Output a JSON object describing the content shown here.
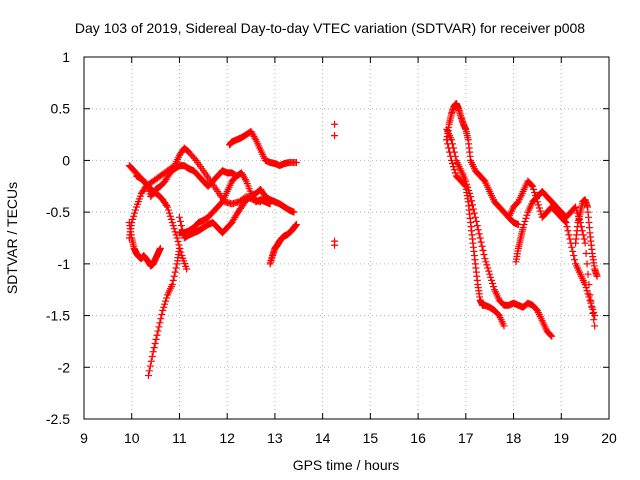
{
  "chart_data": {
    "type": "scatter",
    "title": "Day 103 of 2019, Sidereal Day-to-day VTEC variation (SDTVAR) for receiver p008",
    "xlabel": "GPS time / hours",
    "ylabel": "SDTVAR / TECUs",
    "xlim": [
      9,
      20
    ],
    "ylim": [
      -2.5,
      1
    ],
    "xticks": [
      "9",
      "10",
      "11",
      "12",
      "13",
      "14",
      "15",
      "16",
      "17",
      "18",
      "19",
      "20"
    ],
    "yticks": [
      "1",
      "0.5",
      "0",
      "-0.5",
      "-1",
      "-1.5",
      "-2",
      "-2.5"
    ],
    "grid": true,
    "marker": "+",
    "color": "#ff0000",
    "series": [
      {
        "name": "s1",
        "x": [
          9.95,
          10.0,
          10.05,
          10.1,
          10.15,
          10.2,
          10.25,
          10.3,
          10.35,
          10.4,
          10.45,
          10.5,
          10.55,
          10.6
        ],
        "y": [
          -0.6,
          -0.75,
          -0.85,
          -0.9,
          -0.93,
          -0.95,
          -0.92,
          -0.95,
          -0.98,
          -1.02,
          -1.0,
          -0.95,
          -0.9,
          -0.85
        ]
      },
      {
        "name": "s2",
        "x": [
          9.95,
          10.05,
          10.15,
          10.25,
          10.35,
          10.45,
          10.55,
          10.65,
          10.75,
          10.85,
          10.95,
          11.05,
          11.15
        ],
        "y": [
          -0.05,
          -0.1,
          -0.15,
          -0.2,
          -0.25,
          -0.3,
          -0.33,
          -0.38,
          -0.45,
          -0.6,
          -0.75,
          -0.92,
          -1.05
        ]
      },
      {
        "name": "s3",
        "x": [
          9.95,
          10.0,
          10.1,
          10.2,
          10.3,
          10.45,
          10.6,
          10.75,
          10.9,
          11.0,
          11.1,
          11.2,
          11.35,
          11.5,
          11.65,
          11.8,
          11.95,
          12.1,
          12.25,
          12.4,
          12.55,
          12.7
        ],
        "y": [
          -0.75,
          -0.6,
          -0.45,
          -0.32,
          -0.25,
          -0.2,
          -0.15,
          -0.1,
          -0.05,
          0.05,
          0.12,
          0.08,
          0.0,
          -0.1,
          -0.2,
          -0.3,
          -0.4,
          -0.42,
          -0.4,
          -0.35,
          -0.38,
          -0.4
        ]
      },
      {
        "name": "s4",
        "x": [
          10.1,
          10.2,
          10.3,
          10.4,
          10.5,
          10.6,
          10.7,
          10.8,
          10.9,
          11.0,
          11.1,
          11.2,
          11.3,
          11.4,
          11.5,
          11.6,
          11.7,
          11.8,
          11.9,
          12.0,
          12.1,
          12.2
        ],
        "y": [
          -0.15,
          -0.18,
          -0.22,
          -0.35,
          -0.28,
          -0.25,
          -0.2,
          -0.12,
          -0.08,
          -0.05,
          -0.05,
          -0.08,
          -0.1,
          -0.15,
          -0.2,
          -0.25,
          -0.2,
          -0.15,
          -0.1,
          -0.12,
          -0.12,
          -0.15
        ]
      },
      {
        "name": "s5",
        "x": [
          10.35,
          10.45,
          10.55,
          10.65,
          10.75,
          10.85,
          10.95,
          11.0
        ],
        "y": [
          -2.08,
          -1.85,
          -1.65,
          -1.45,
          -1.3,
          -1.2,
          -1.0,
          -0.85
        ]
      },
      {
        "name": "s6",
        "x": [
          11.0,
          11.1,
          11.2,
          11.3,
          11.4,
          11.5,
          11.6,
          11.7,
          11.8,
          11.9,
          12.0,
          12.1,
          12.2,
          12.3,
          12.4,
          12.5,
          12.6,
          12.7,
          12.8,
          12.9
        ],
        "y": [
          -0.7,
          -0.7,
          -0.68,
          -0.65,
          -0.6,
          -0.58,
          -0.55,
          -0.5,
          -0.45,
          -0.4,
          -0.3,
          -0.2,
          -0.15,
          -0.12,
          -0.2,
          -0.32,
          -0.4,
          -0.38,
          -0.4,
          -0.42
        ]
      },
      {
        "name": "s7",
        "x": [
          11.0,
          11.1,
          11.2,
          11.3,
          11.4,
          11.5,
          11.6,
          11.7,
          11.8,
          11.9,
          12.0,
          12.1,
          12.2,
          12.3,
          12.4,
          12.5,
          12.6,
          12.7,
          12.8,
          12.9,
          13.0,
          13.1,
          13.2,
          13.3,
          13.4
        ],
        "y": [
          -0.55,
          -0.75,
          -0.72,
          -0.7,
          -0.68,
          -0.65,
          -0.62,
          -0.6,
          -0.65,
          -0.7,
          -0.65,
          -0.6,
          -0.52,
          -0.45,
          -0.38,
          -0.35,
          -0.32,
          -0.28,
          -0.35,
          -0.38,
          -0.4,
          -0.42,
          -0.45,
          -0.48,
          -0.5
        ]
      },
      {
        "name": "s8",
        "x": [
          12.05,
          12.1,
          12.2,
          12.3,
          12.4,
          12.5,
          12.6,
          12.7,
          12.8,
          12.9,
          13.0,
          13.1,
          13.2,
          13.3,
          13.45
        ],
        "y": [
          0.15,
          0.18,
          0.2,
          0.22,
          0.25,
          0.28,
          0.2,
          0.1,
          0.0,
          -0.02,
          -0.03,
          -0.05,
          -0.03,
          -0.02,
          -0.02
        ]
      },
      {
        "name": "s9",
        "x": [
          12.9,
          12.95,
          13.0,
          13.05,
          13.1,
          13.15,
          13.2,
          13.25,
          13.3,
          13.35,
          13.4,
          13.45
        ],
        "y": [
          -1.0,
          -0.92,
          -0.85,
          -0.82,
          -0.78,
          -0.75,
          -0.73,
          -0.72,
          -0.7,
          -0.68,
          -0.65,
          -0.62
        ]
      },
      {
        "name": "s10",
        "x": [
          14.25,
          14.25,
          14.25,
          14.25
        ],
        "y": [
          0.35,
          0.24,
          -0.78,
          -0.82
        ]
      },
      {
        "name": "s11",
        "x": [
          16.6,
          16.65,
          16.7,
          16.75,
          16.8,
          16.85,
          16.9,
          16.95,
          17.0,
          17.05,
          17.1,
          17.2,
          17.3,
          17.4,
          17.5,
          17.6,
          17.7,
          17.8,
          17.9,
          18.0,
          18.1
        ],
        "y": [
          0.2,
          0.35,
          0.45,
          0.52,
          0.55,
          0.5,
          0.42,
          0.35,
          0.3,
          0.2,
          0.0,
          -0.1,
          -0.15,
          -0.2,
          -0.3,
          -0.4,
          -0.45,
          -0.5,
          -0.55,
          -0.6,
          -0.62
        ]
      },
      {
        "name": "s12",
        "x": [
          16.6,
          16.7,
          16.8,
          16.9,
          17.0,
          17.05,
          17.1,
          17.15,
          17.2,
          17.25,
          17.3,
          17.35,
          17.4,
          17.5,
          17.6,
          17.7,
          17.8
        ],
        "y": [
          0.2,
          0.0,
          -0.15,
          -0.2,
          -0.25,
          -0.4,
          -0.6,
          -0.8,
          -1.0,
          -1.2,
          -1.35,
          -1.4,
          -1.4,
          -1.42,
          -1.45,
          -1.5,
          -1.6
        ]
      },
      {
        "name": "s13",
        "x": [
          16.6,
          16.7,
          16.8,
          16.9,
          17.0,
          17.1,
          17.2,
          17.3,
          17.4,
          17.5,
          17.6,
          17.7,
          17.8,
          17.9,
          18.0,
          18.1,
          18.2,
          18.3,
          18.4,
          18.5,
          18.6,
          18.7,
          18.8
        ],
        "y": [
          0.3,
          0.2,
          0.0,
          -0.1,
          -0.2,
          -0.35,
          -0.55,
          -0.75,
          -0.95,
          -1.1,
          -1.25,
          -1.35,
          -1.4,
          -1.4,
          -1.38,
          -1.4,
          -1.42,
          -1.38,
          -1.4,
          -1.45,
          -1.55,
          -1.65,
          -1.7
        ]
      },
      {
        "name": "s14",
        "x": [
          17.9,
          18.0,
          18.1,
          18.2,
          18.3,
          18.4,
          18.5,
          18.6,
          18.7,
          18.8,
          18.9,
          19.0,
          19.1,
          19.2,
          19.3,
          19.4,
          19.5,
          19.6,
          19.7
        ],
        "y": [
          -0.55,
          -0.45,
          -0.4,
          -0.3,
          -0.2,
          -0.25,
          -0.4,
          -0.55,
          -0.5,
          -0.45,
          -0.5,
          -0.55,
          -0.6,
          -0.8,
          -1.0,
          -1.1,
          -1.2,
          -1.35,
          -1.5
        ]
      },
      {
        "name": "s15",
        "x": [
          18.05,
          18.1,
          18.15,
          18.2,
          18.3,
          18.4,
          18.5,
          18.6,
          18.7,
          18.8,
          18.9,
          19.0,
          19.1,
          19.2,
          19.3,
          19.4,
          19.5,
          19.6,
          19.7
        ],
        "y": [
          -0.98,
          -0.85,
          -0.75,
          -0.65,
          -0.5,
          -0.4,
          -0.35,
          -0.3,
          -0.35,
          -0.4,
          -0.45,
          -0.5,
          -0.55,
          -0.5,
          -0.45,
          -0.6,
          -0.8,
          -1.3,
          -1.6
        ]
      },
      {
        "name": "s16",
        "x": [
          19.3,
          19.35,
          19.4,
          19.45,
          19.5,
          19.55,
          19.6,
          19.65,
          19.7,
          19.75
        ],
        "y": [
          -0.8,
          -0.6,
          -0.5,
          -0.4,
          -0.38,
          -0.45,
          -0.7,
          -0.9,
          -1.05,
          -1.12
        ]
      }
    ]
  }
}
